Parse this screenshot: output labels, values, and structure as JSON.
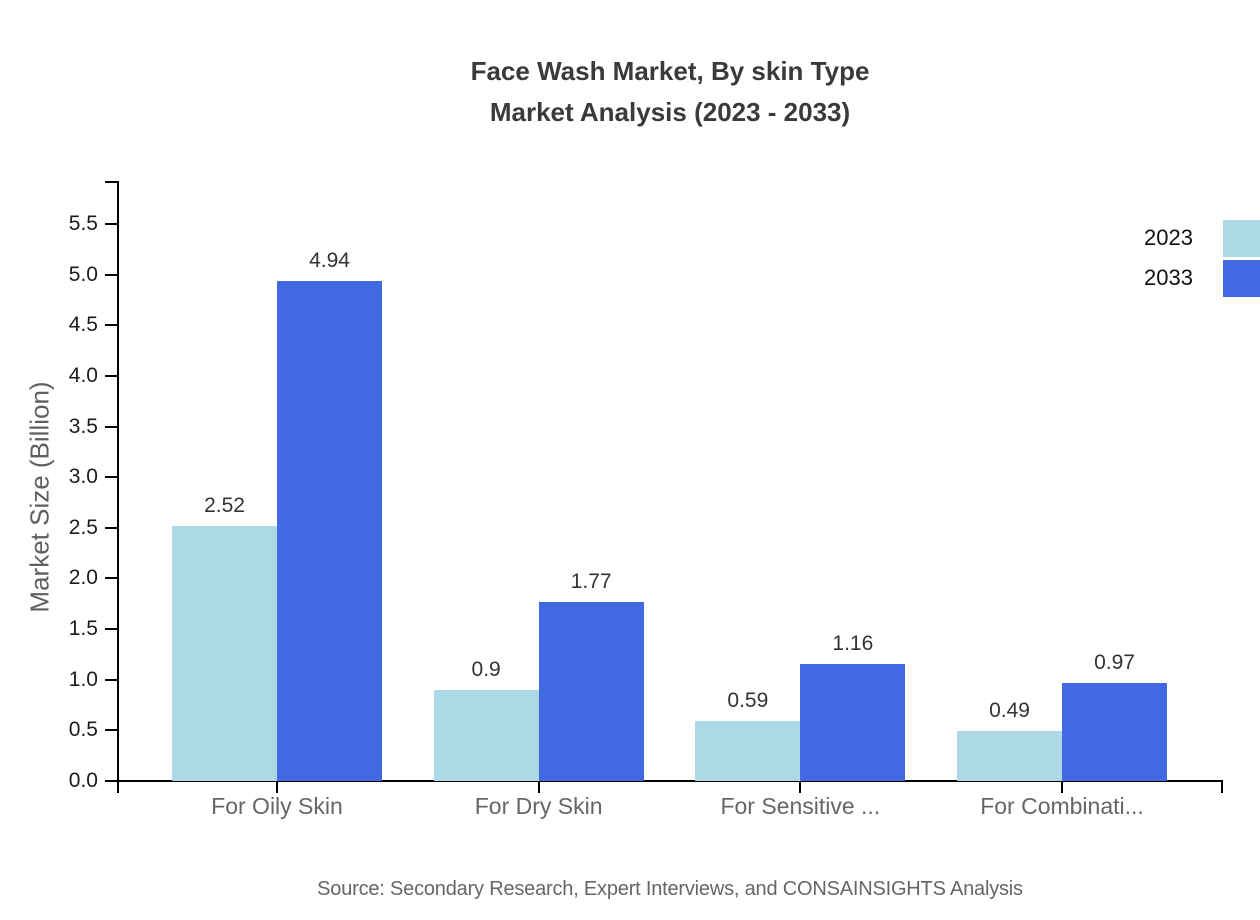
{
  "title": {
    "line1": "Face Wash Market, By skin Type",
    "line2": "Market Analysis (2023 - 2033)"
  },
  "source": "Source: Secondary Research, Expert Interviews, and CONSAINSIGHTS Analysis",
  "chart_data": {
    "type": "bar",
    "categories": [
      "For Oily Skin",
      "For Dry Skin",
      "For Sensitive ...",
      "For Combinati..."
    ],
    "series": [
      {
        "name": "2023",
        "color": "#add8e6",
        "values": [
          2.52,
          0.9,
          0.59,
          0.49
        ]
      },
      {
        "name": "2033",
        "color": "#4169e1",
        "values": [
          4.94,
          1.77,
          1.16,
          0.97
        ]
      }
    ],
    "title": "Face Wash Market, By skin Type Market Analysis (2023 - 2033)",
    "xlabel": "",
    "ylabel": "Market Size (Billion)",
    "ylim": [
      0,
      5.5
    ],
    "ytick_step": 0.5,
    "ytick_labels": [
      "0.0",
      "0.5",
      "1.0",
      "1.5",
      "2.0",
      "2.5",
      "3.0",
      "3.5",
      "4.0",
      "4.5",
      "5.0",
      "5.5"
    ],
    "grid": false,
    "data_labels": true,
    "legend_position": "top-right",
    "axis_color": "#000000"
  }
}
